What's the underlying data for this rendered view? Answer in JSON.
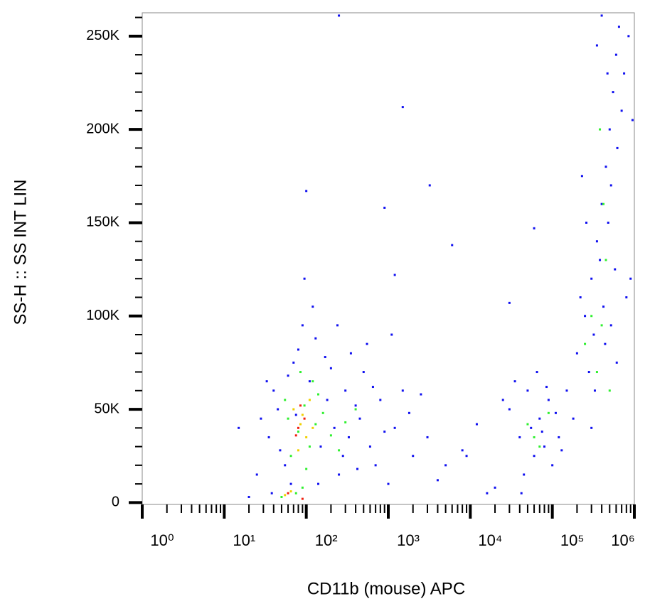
{
  "chart_data": {
    "type": "scatter",
    "x_label": "CD11b (mouse) APC",
    "y_label": "SS-H :: SS INT LIN",
    "xscale": "log",
    "xlim": [
      1,
      1000000
    ],
    "xticks": [
      {
        "value": 1,
        "label": "10⁰"
      },
      {
        "value": 10,
        "label": "10¹"
      },
      {
        "value": 100,
        "label": "10²"
      },
      {
        "value": 1000,
        "label": "10³"
      },
      {
        "value": 10000,
        "label": "10⁴"
      },
      {
        "value": 100000,
        "label": "10⁵"
      },
      {
        "value": 1000000,
        "label": "10⁶"
      }
    ],
    "xminor": [
      2,
      3,
      4,
      5,
      6,
      7,
      8,
      9,
      20,
      30,
      40,
      50,
      60,
      70,
      80,
      90,
      200,
      300,
      400,
      500,
      600,
      700,
      800,
      900,
      2000,
      3000,
      4000,
      5000,
      6000,
      7000,
      8000,
      9000,
      20000,
      30000,
      40000,
      50000,
      60000,
      70000,
      80000,
      90000,
      200000,
      300000,
      400000,
      500000,
      600000,
      700000,
      800000,
      900000
    ],
    "ylim": [
      -1000,
      262500
    ],
    "yticks": [
      0,
      {
        "value": 50000,
        "label": "50K"
      },
      {
        "value": 100000,
        "label": "100K"
      },
      {
        "value": 150000,
        "label": "150K"
      },
      {
        "value": 200000,
        "label": "200K"
      },
      {
        "value": 250000,
        "label": "250K"
      }
    ],
    "yminor": [
      10000,
      20000,
      30000,
      40000,
      60000,
      70000,
      80000,
      90000,
      110000,
      120000,
      130000,
      140000,
      160000,
      170000,
      180000,
      190000,
      210000,
      220000,
      230000,
      240000,
      260000
    ],
    "series": [
      {
        "color": "#1010f0",
        "x": [
          40,
          55,
          70,
          90,
          130,
          200,
          300,
          450,
          600,
          800,
          1200,
          2000,
          35,
          45,
          65,
          110,
          150,
          250,
          350,
          500,
          700,
          1000,
          1500,
          3000,
          5000,
          28,
          38,
          60,
          80,
          120,
          180,
          220,
          280,
          400,
          550,
          900,
          1800,
          2500,
          4000,
          8000,
          15,
          20,
          25,
          33,
          48,
          75,
          95,
          140,
          170,
          240,
          330,
          420,
          650,
          1100,
          16000,
          250,
          1500,
          3200,
          900,
          100,
          6000,
          1200,
          30000,
          40000,
          50000,
          60000,
          70000,
          80000,
          90000,
          100000,
          45000,
          35000,
          55000,
          65000,
          75000,
          110000,
          130000,
          25000,
          42000,
          85000,
          120000,
          20000,
          12000,
          9000,
          60000,
          30000,
          150000,
          200000,
          250000,
          300000,
          350000,
          400000,
          450000,
          500000,
          550000,
          600000,
          650000,
          180000,
          220000,
          280000,
          320000,
          380000,
          420000,
          480000,
          520000,
          580000,
          620000,
          700000,
          750000,
          800000,
          850000,
          350000,
          400000,
          470000,
          260000,
          230000,
          330000,
          440000,
          520000,
          610000,
          300000,
          900000,
          950000
        ],
        "y": [
          60000,
          20000,
          75000,
          95000,
          88000,
          72000,
          60000,
          45000,
          30000,
          55000,
          40000,
          25000,
          35000,
          50000,
          10000,
          65000,
          30000,
          15000,
          80000,
          70000,
          20000,
          10000,
          60000,
          35000,
          20000,
          45000,
          5000,
          68000,
          82000,
          105000,
          55000,
          40000,
          25000,
          52000,
          85000,
          38000,
          48000,
          58000,
          12000,
          28000,
          40000,
          3000,
          15000,
          65000,
          28000,
          47000,
          120000,
          10000,
          78000,
          95000,
          35000,
          18000,
          62000,
          90000,
          5000,
          261000,
          212000,
          170000,
          158000,
          167000,
          138000,
          122000,
          50000,
          35000,
          60000,
          25000,
          45000,
          30000,
          55000,
          20000,
          15000,
          65000,
          40000,
          70000,
          38000,
          48000,
          28000,
          55000,
          5000,
          62000,
          35000,
          8000,
          42000,
          25000,
          147000,
          107000,
          60000,
          80000,
          100000,
          120000,
          140000,
          160000,
          180000,
          200000,
          220000,
          240000,
          255000,
          45000,
          110000,
          70000,
          90000,
          130000,
          105000,
          150000,
          170000,
          125000,
          190000,
          210000,
          230000,
          110000,
          250000,
          245000,
          261000,
          230000,
          150000,
          175000,
          60000,
          85000,
          95000,
          75000,
          40000,
          120000,
          205000
        ]
      },
      {
        "color": "#30f030",
        "x": [
          60,
          80,
          95,
          110,
          130,
          75,
          90,
          55,
          160,
          200,
          300,
          400,
          120,
          65,
          100,
          50,
          140,
          250,
          85,
          50000,
          70000,
          90000,
          60000,
          300000,
          400000,
          350000,
          450000,
          500000,
          250000,
          380000,
          420000
        ],
        "y": [
          45000,
          38000,
          52000,
          30000,
          42000,
          5000,
          8000,
          55000,
          48000,
          36000,
          43000,
          50000,
          65000,
          25000,
          18000,
          3000,
          58000,
          28000,
          70000,
          42000,
          30000,
          48000,
          35000,
          100000,
          95000,
          70000,
          130000,
          60000,
          85000,
          200000,
          160000
        ]
      },
      {
        "color": "#f0d000",
        "x": [
          70,
          85,
          100,
          65,
          90,
          120,
          55,
          80,
          110
        ],
        "y": [
          50000,
          42000,
          35000,
          6000,
          47000,
          40000,
          4000,
          28000,
          55000
        ]
      },
      {
        "color": "#f02010",
        "x": [
          80,
          95,
          75,
          60,
          90,
          85
        ],
        "y": [
          40000,
          45000,
          36000,
          5000,
          2000,
          52000
        ]
      }
    ]
  }
}
